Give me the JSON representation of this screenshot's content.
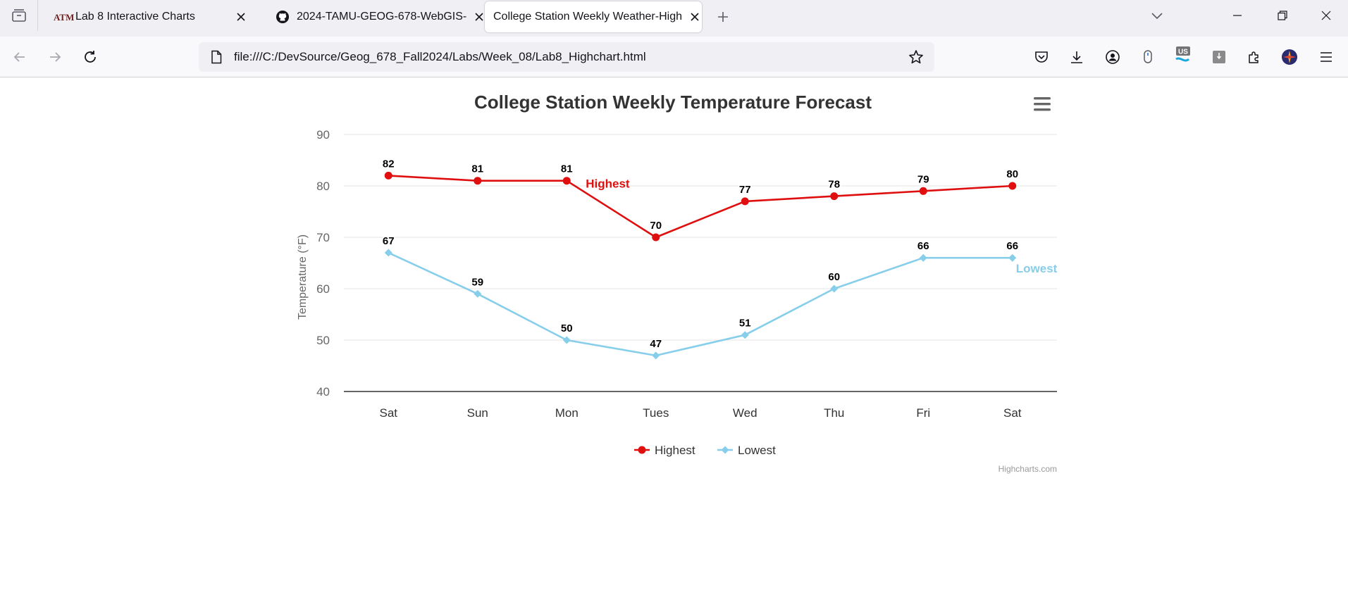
{
  "browser": {
    "tabs": [
      {
        "title": "Lab 8 Interactive Charts",
        "icon": "tamu-logo-icon",
        "active": false
      },
      {
        "title": "2024-TAMU-GEOG-678-WebGIS-",
        "icon": "github-icon",
        "active": false
      },
      {
        "title": "College Station Weekly Weather-High",
        "icon": "",
        "active": true
      }
    ],
    "url": "file:///C:/DevSource/Geog_678_Fall2024/Labs/Week_08/Lab8_Highchart.html",
    "extension_badge": "US"
  },
  "chart_data": {
    "type": "line",
    "title": "College Station Weekly Temperature Forecast",
    "xlabel": "",
    "ylabel": "Temperature (°F)",
    "categories": [
      "Sat",
      "Sun",
      "Mon",
      "Tues",
      "Wed",
      "Thu",
      "Fri",
      "Sat"
    ],
    "ylim": [
      40,
      90
    ],
    "yticks": [
      40,
      50,
      60,
      70,
      80,
      90
    ],
    "grid": true,
    "legend_position": "bottom-center",
    "series": [
      {
        "name": "Highest",
        "color": "#e00f0f",
        "marker": "circle",
        "values": [
          82,
          81,
          81,
          70,
          77,
          78,
          79,
          80
        ],
        "label": {
          "text": "Highest",
          "at_index": 2
        }
      },
      {
        "name": "Lowest",
        "color": "#87ceeb",
        "marker": "diamond",
        "values": [
          67,
          59,
          50,
          47,
          51,
          60,
          66,
          66
        ],
        "label": {
          "text": "Lowest",
          "at_index": 7
        }
      }
    ],
    "credits": "Highcharts.com"
  }
}
